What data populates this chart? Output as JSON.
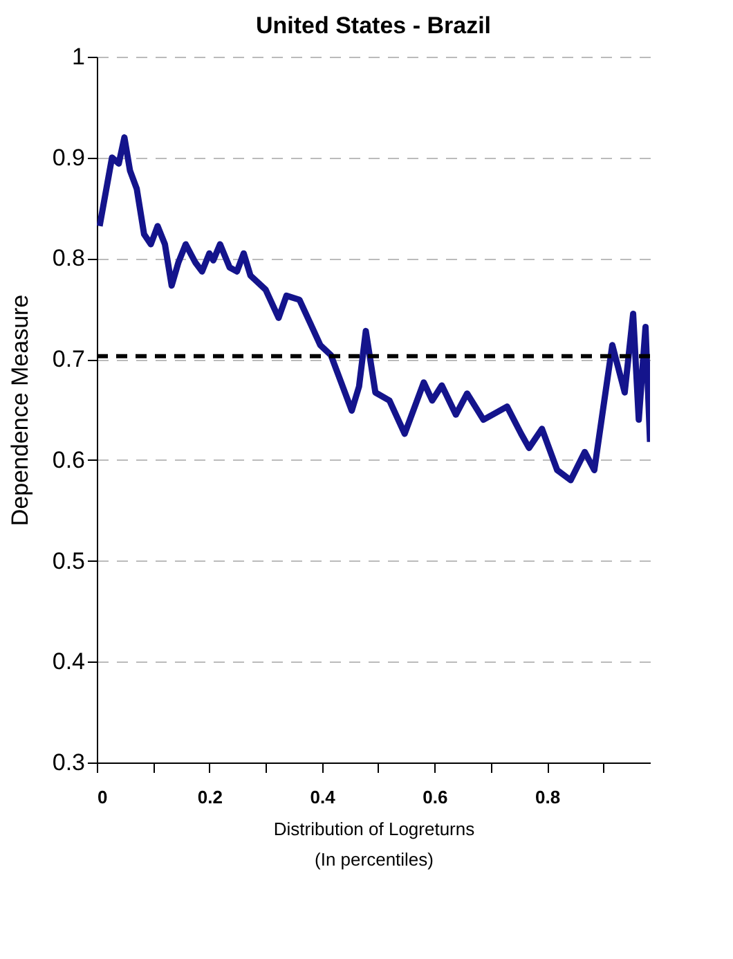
{
  "chart_data": {
    "type": "line",
    "title": "United States - Brazil",
    "xlabel": "Distribution of Logreturns\n(In percentiles)",
    "ylabel": "Dependence Measure",
    "xlim": [
      0,
      0.983
    ],
    "xticks": [
      0,
      {
        "value": 0.1,
        "label": null
      },
      0.2,
      {
        "value": 0.3,
        "label": null
      },
      0.4,
      {
        "value": 0.5,
        "label": null
      },
      0.6,
      {
        "value": 0.7,
        "label": null
      },
      0.8,
      {
        "value": 0.9,
        "label": null
      }
    ],
    "ylim": [
      0.3,
      1
    ],
    "yticks": [
      0.3,
      0.4,
      0.5,
      0.6,
      0.7,
      0.8,
      0.9,
      1
    ],
    "grid": "y",
    "marker": "none",
    "line_style": "solid",
    "ref_lines": [
      {
        "axis": "y",
        "value": 0.703,
        "color": "#000000",
        "line_style": "dashed"
      }
    ],
    "x": [
      0.005,
      0.027,
      0.039,
      0.049,
      0.059,
      0.071,
      0.084,
      0.096,
      0.108,
      0.121,
      0.133,
      0.145,
      0.158,
      0.175,
      0.187,
      0.2,
      0.207,
      0.219,
      0.236,
      0.249,
      0.261,
      0.273,
      0.3,
      0.323,
      0.337,
      0.36,
      0.379,
      0.397,
      0.416,
      0.453,
      0.466,
      0.478,
      0.495,
      0.52,
      0.547,
      0.581,
      0.596,
      0.613,
      0.638,
      0.658,
      0.687,
      0.729,
      0.754,
      0.768,
      0.791,
      0.818,
      0.842,
      0.867,
      0.884,
      0.916,
      0.938,
      0.953,
      0.963,
      0.975,
      0.983
    ],
    "series": [
      {
        "color": "#14148c",
        "values": [
          0.832,
          0.9,
          0.894,
          0.92,
          0.887,
          0.869,
          0.824,
          0.814,
          0.832,
          0.814,
          0.773,
          0.796,
          0.814,
          0.796,
          0.787,
          0.805,
          0.798,
          0.814,
          0.791,
          0.787,
          0.805,
          0.783,
          0.769,
          0.741,
          0.763,
          0.759,
          0.736,
          0.714,
          0.704,
          0.649,
          0.673,
          0.728,
          0.667,
          0.659,
          0.626,
          0.677,
          0.659,
          0.674,
          0.645,
          0.666,
          0.64,
          0.653,
          0.626,
          0.612,
          0.631,
          0.59,
          0.58,
          0.608,
          0.59,
          0.714,
          0.667,
          0.745,
          0.64,
          0.732,
          0.618
        ]
      }
    ]
  }
}
